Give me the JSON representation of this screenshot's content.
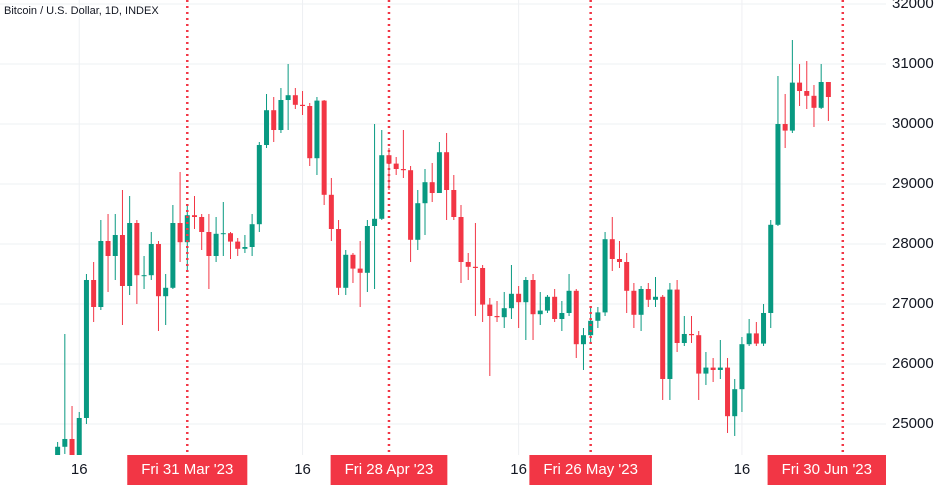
{
  "chart_data": {
    "type": "candlestick",
    "title": "Bitcoin / U.S. Dollar, 1D, INDEX",
    "up_color": "#089981",
    "down_color": "#f23645",
    "marker_color": "#f23645",
    "grid": true,
    "xlim": [
      "2023-03-05",
      "2023-07-06"
    ],
    "ylim": [
      24483,
      32067
    ],
    "yticks": [
      25000,
      26000,
      27000,
      28000,
      29000,
      30000,
      31000,
      32000
    ],
    "xticks": [
      {
        "value": "2023-03-16",
        "label": "16"
      },
      {
        "value": "2023-04-16",
        "label": "16"
      },
      {
        "value": "2023-05-16",
        "label": "16"
      },
      {
        "value": "2023-06-16",
        "label": "16"
      }
    ],
    "markers": [
      {
        "value": "2023-03-31",
        "label": "Fri 31 Mar '23"
      },
      {
        "value": "2023-04-28",
        "label": "Fri 28 Apr '23"
      },
      {
        "value": "2023-05-26",
        "label": "Fri 26 May '23"
      },
      {
        "value": "2023-06-30",
        "label": "Fri 30 Jun '23"
      }
    ],
    "x": [
      "2023-03-13",
      "2023-03-14",
      "2023-03-15",
      "2023-03-16",
      "2023-03-17",
      "2023-03-18",
      "2023-03-19",
      "2023-03-20",
      "2023-03-21",
      "2023-03-22",
      "2023-03-23",
      "2023-03-24",
      "2023-03-25",
      "2023-03-26",
      "2023-03-27",
      "2023-03-28",
      "2023-03-29",
      "2023-03-30",
      "2023-03-31",
      "2023-04-01",
      "2023-04-02",
      "2023-04-03",
      "2023-04-04",
      "2023-04-05",
      "2023-04-06",
      "2023-04-07",
      "2023-04-08",
      "2023-04-09",
      "2023-04-10",
      "2023-04-11",
      "2023-04-12",
      "2023-04-13",
      "2023-04-14",
      "2023-04-15",
      "2023-04-16",
      "2023-04-17",
      "2023-04-18",
      "2023-04-19",
      "2023-04-20",
      "2023-04-21",
      "2023-04-22",
      "2023-04-23",
      "2023-04-24",
      "2023-04-25",
      "2023-04-26",
      "2023-04-27",
      "2023-04-28",
      "2023-04-29",
      "2023-04-30",
      "2023-05-01",
      "2023-05-02",
      "2023-05-03",
      "2023-05-04",
      "2023-05-05",
      "2023-05-06",
      "2023-05-07",
      "2023-05-08",
      "2023-05-09",
      "2023-05-10",
      "2023-05-11",
      "2023-05-12",
      "2023-05-13",
      "2023-05-14",
      "2023-05-15",
      "2023-05-16",
      "2023-05-17",
      "2023-05-18",
      "2023-05-19",
      "2023-05-20",
      "2023-05-21",
      "2023-05-22",
      "2023-05-23",
      "2023-05-24",
      "2023-05-25",
      "2023-05-26",
      "2023-05-27",
      "2023-05-28",
      "2023-05-29",
      "2023-05-30",
      "2023-05-31",
      "2023-06-01",
      "2023-06-02",
      "2023-06-03",
      "2023-06-04",
      "2023-06-05",
      "2023-06-06",
      "2023-06-07",
      "2023-06-08",
      "2023-06-09",
      "2023-06-10",
      "2023-06-11",
      "2023-06-12",
      "2023-06-13",
      "2023-06-14",
      "2023-06-15",
      "2023-06-16",
      "2023-06-17",
      "2023-06-18",
      "2023-06-19",
      "2023-06-20",
      "2023-06-21",
      "2023-06-22",
      "2023-06-23",
      "2023-06-24",
      "2023-06-25",
      "2023-06-26",
      "2023-06-27",
      "2023-06-28"
    ],
    "open": [
      24450,
      24620,
      24750,
      24450,
      25100,
      27400,
      26950,
      28050,
      27800,
      28150,
      27300,
      28350,
      27480,
      27480,
      28000,
      27130,
      27270,
      28350,
      28030,
      28480,
      28450,
      28200,
      27800,
      28170,
      28180,
      28040,
      27920,
      27950,
      28330,
      29650,
      30230,
      29900,
      30400,
      30480,
      30320,
      30300,
      29430,
      30390,
      28820,
      28250,
      27270,
      27820,
      27590,
      27520,
      28300,
      28420,
      29480,
      29340,
      29250,
      29230,
      28070,
      28680,
      29030,
      28850,
      29530,
      28900,
      28450,
      27700,
      27620,
      27600,
      26990,
      26800,
      26780,
      26930,
      27170,
      27030,
      27400,
      26830,
      26890,
      27120,
      26750,
      26850,
      27220,
      26330,
      26480,
      26720,
      26860,
      28080,
      27750,
      27700,
      27220,
      26820,
      27250,
      27070,
      27120,
      25750,
      27240,
      26350,
      26500,
      26480,
      25840,
      25940,
      25900,
      25940,
      25130,
      25580,
      26330,
      26510,
      26340,
      26850,
      28320,
      30000,
      29890,
      30690,
      30550,
      30470,
      30270,
      30700
    ],
    "high": [
      24700,
      26500,
      25300,
      25200,
      27500,
      27700,
      28400,
      28500,
      28500,
      28900,
      28800,
      28400,
      27800,
      28200,
      28050,
      27500,
      28650,
      29200,
      28650,
      28800,
      28500,
      28500,
      28450,
      28700,
      28200,
      28100,
      28150,
      28500,
      29700,
      30500,
      30450,
      30600,
      31000,
      30600,
      30550,
      30350,
      30450,
      30400,
      29100,
      28400,
      27900,
      27850,
      28050,
      28400,
      30000,
      29900,
      29600,
      29450,
      29900,
      29300,
      28900,
      29250,
      29350,
      29700,
      29850,
      29150,
      28650,
      27850,
      28350,
      27650,
      27100,
      27050,
      27200,
      27650,
      27300,
      27450,
      27500,
      27200,
      27150,
      27250,
      27050,
      27500,
      27250,
      26600,
      26950,
      26950,
      28200,
      28450,
      28050,
      27850,
      27350,
      27300,
      27350,
      27450,
      27150,
      27350,
      27400,
      26800,
      26800,
      26550,
      26200,
      26100,
      26400,
      26100,
      25750,
      26450,
      26750,
      26700,
      27000,
      28400,
      30800,
      30500,
      31400,
      31000,
      31050,
      30650,
      31000,
      30700
    ],
    "low": [
      24300,
      24500,
      24400,
      24400,
      25000,
      26700,
      26900,
      27200,
      27400,
      26650,
      27150,
      27000,
      27250,
      27400,
      26550,
      26650,
      27250,
      27700,
      27550,
      28250,
      27900,
      27250,
      27700,
      27800,
      27750,
      27800,
      27850,
      27800,
      28200,
      29600,
      29700,
      29850,
      29900,
      30250,
      30150,
      29300,
      29150,
      28650,
      28050,
      27150,
      27150,
      27350,
      26950,
      27200,
      27250,
      28400,
      28900,
      29150,
      29100,
      27700,
      27900,
      28150,
      28700,
      28850,
      28400,
      28400,
      27350,
      27400,
      26800,
      26700,
      25800,
      26700,
      26600,
      26750,
      26600,
      26400,
      26400,
      26650,
      26850,
      26700,
      26550,
      26800,
      26100,
      25900,
      26350,
      26600,
      26800,
      27550,
      27600,
      26850,
      26600,
      26550,
      26950,
      26950,
      25400,
      25400,
      26200,
      26300,
      26350,
      25400,
      25650,
      25700,
      25750,
      24850,
      24800,
      25200,
      26300,
      26300,
      26300,
      26600,
      28300,
      29600,
      29850,
      30300,
      30250,
      29950,
      30250,
      30050
    ],
    "close": [
      24620,
      24750,
      24450,
      25100,
      27400,
      26950,
      28050,
      27800,
      28150,
      27300,
      28350,
      27480,
      27480,
      28000,
      27130,
      27270,
      28350,
      28030,
      28480,
      28450,
      28200,
      27800,
      28170,
      28180,
      28040,
      27920,
      27950,
      28330,
      29650,
      30230,
      29900,
      30400,
      30480,
      30320,
      30300,
      29430,
      30390,
      28820,
      28250,
      27270,
      27820,
      27590,
      27520,
      28300,
      28420,
      29480,
      29340,
      29250,
      29230,
      28070,
      28680,
      29030,
      28850,
      29530,
      28900,
      28450,
      27700,
      27620,
      27600,
      26990,
      26800,
      26780,
      26930,
      27170,
      27030,
      27400,
      26830,
      26890,
      27120,
      26750,
      26850,
      27220,
      26330,
      26480,
      26720,
      26860,
      28080,
      27750,
      27700,
      27220,
      26820,
      27250,
      27070,
      27120,
      25750,
      27240,
      26350,
      26500,
      26480,
      25840,
      25940,
      25900,
      25940,
      25130,
      25580,
      26330,
      26510,
      26340,
      26850,
      28320,
      30000,
      29890,
      30690,
      30550,
      30470,
      30270,
      30700,
      30450
    ]
  }
}
